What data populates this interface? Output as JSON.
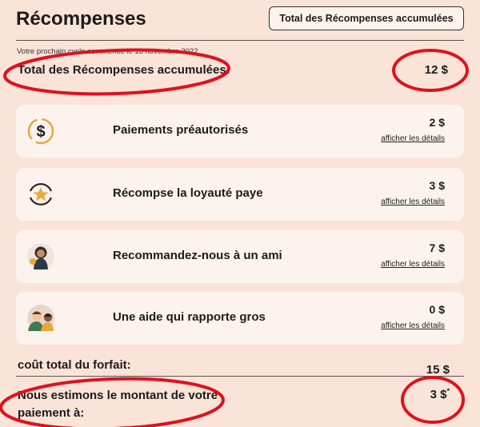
{
  "header": {
    "title": "Récompenses",
    "button_label": "Total des Récompenses accumulées"
  },
  "summary": {
    "cycle_text": "Votre prochain cycle commence le 13 novembre 2022",
    "total_label": "Total des Récompenses accumulées:",
    "total_value": "12 $"
  },
  "rewards": [
    {
      "label": "Paiements préautorisés",
      "amount": "2 $",
      "details": "afficher les détails",
      "icon": "dollar-icon"
    },
    {
      "label": "Récompse la loyauté paye",
      "amount": "3 $",
      "details": "afficher les détails",
      "icon": "star-loyalty-icon"
    },
    {
      "label": "Recommandez-nous à un ami",
      "amount": "7 $",
      "details": "afficher les détails",
      "icon": "person-referral-icon"
    },
    {
      "label": "Une aide qui rapporte gros",
      "amount": "0 $",
      "details": "afficher les détails",
      "icon": "two-people-icon"
    }
  ],
  "footer": {
    "forfait_label": "coût total du forfait:",
    "forfait_value": "15 $",
    "estimate_label": "Nous estimons le montant de votre paiement à:",
    "estimate_value": "3 $",
    "estimate_note": "*"
  },
  "colors": {
    "background": "#fae3d7",
    "card": "#fdf3ee",
    "annotation": "#e0101e",
    "icon_gold": "#e5a93c"
  }
}
